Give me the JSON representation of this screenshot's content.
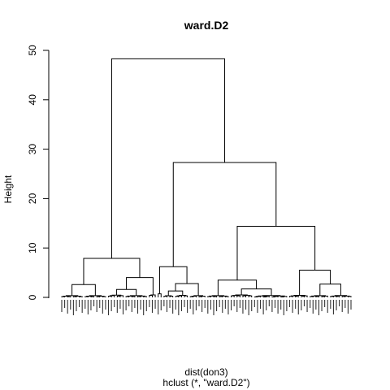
{
  "chart_data": {
    "type": "dendrogram",
    "title": "ward.D2",
    "ylabel": "Height",
    "xlabel": "dist(don3)",
    "sublabel": "hclust (*, \"ward.D2\")",
    "ylim": [
      0,
      50
    ],
    "yticks": [
      0,
      10,
      20,
      30,
      40,
      50
    ],
    "leaf_count": 100,
    "merges": [
      {
        "h": 48.3,
        "left": [
          2,
          55
        ],
        "right": [
          31,
          100
        ]
      },
      {
        "h": 27.3,
        "left": [
          31,
          58
        ],
        "right": [
          59,
          100
        ]
      },
      {
        "h": 14.4,
        "left": [
          59,
          80
        ],
        "right": [
          81,
          100
        ]
      },
      {
        "h": 7.9,
        "left": [
          2,
          27
        ],
        "right": [
          28,
          55
        ]
      },
      {
        "h": 6.2,
        "left": [
          31,
          37
        ],
        "right": [
          38,
          58
        ]
      },
      {
        "h": 5.5,
        "left": [
          81,
          89
        ],
        "right": [
          90,
          100
        ]
      },
      {
        "h": 4.0,
        "left": [
          28,
          40
        ],
        "right": [
          41,
          55
        ]
      },
      {
        "h": 3.5,
        "left": [
          59,
          68
        ],
        "right": [
          69,
          80
        ]
      },
      {
        "h": 2.8,
        "left": [
          38,
          46
        ],
        "right": [
          47,
          58
        ]
      },
      {
        "h": 2.7,
        "left": [
          90,
          95
        ],
        "right": [
          96,
          100
        ]
      },
      {
        "h": 2.6,
        "left": [
          2,
          13
        ],
        "right": [
          14,
          27
        ]
      },
      {
        "h": 1.7,
        "left": [
          69,
          74
        ],
        "right": [
          75,
          80
        ]
      },
      {
        "h": 1.6,
        "left": [
          41,
          48
        ],
        "right": [
          49,
          55
        ]
      },
      {
        "h": 1.4,
        "left": [
          28,
          34
        ],
        "right": [
          35,
          40
        ]
      },
      {
        "h": 1.2,
        "left": [
          81,
          84
        ],
        "right": [
          85,
          89
        ]
      },
      {
        "h": 1.1,
        "left": [
          47,
          52
        ],
        "right": [
          53,
          58
        ]
      },
      {
        "h": 1.0,
        "left": [
          96,
          98
        ],
        "right": [
          99,
          100
        ]
      },
      {
        "h": 0.9,
        "left": [
          59,
          63
        ],
        "right": [
          64,
          68
        ]
      },
      {
        "h": 0.8,
        "left": [
          2,
          7
        ],
        "right": [
          8,
          13
        ]
      },
      {
        "h": 0.8,
        "left": [
          14,
          20
        ],
        "right": [
          21,
          27
        ]
      },
      {
        "h": 0.8,
        "left": [
          38,
          42
        ],
        "right": [
          43,
          46
        ]
      },
      {
        "h": 0.6,
        "left": [
          75,
          77
        ],
        "right": [
          78,
          80
        ]
      },
      {
        "h": 0.5,
        "left": [
          28,
          31
        ],
        "right": [
          32,
          34
        ]
      },
      {
        "h": 0.4,
        "left": [
          35,
          37
        ],
        "right": [
          38,
          40
        ]
      }
    ]
  }
}
